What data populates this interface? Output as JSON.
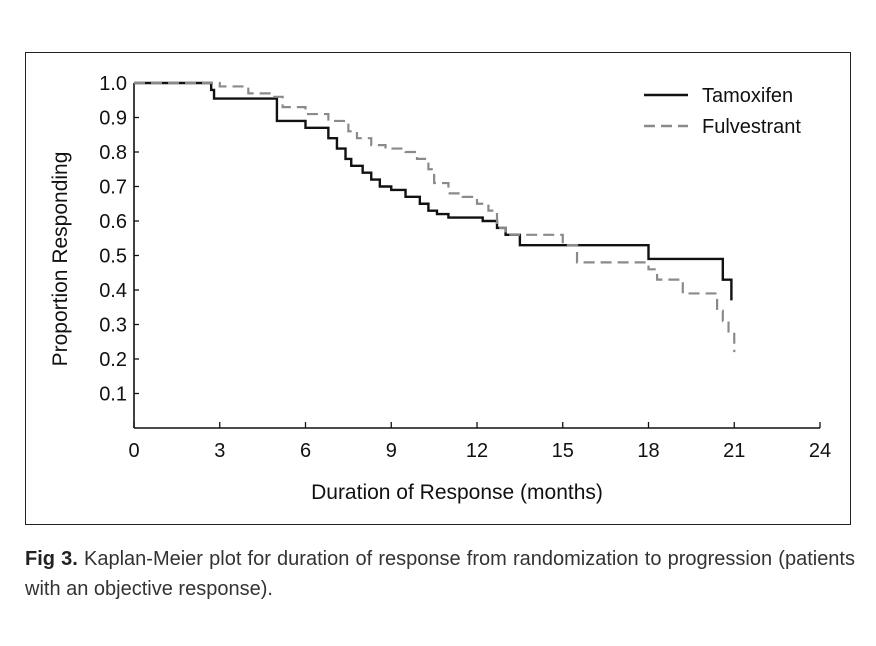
{
  "chart_data": {
    "type": "line",
    "title": "",
    "xlabel": "Duration of Response (months)",
    "ylabel": "Proportion Responding",
    "xlim": [
      0,
      24
    ],
    "ylim": [
      0,
      1.0
    ],
    "x_ticks": [
      0,
      3,
      6,
      9,
      12,
      15,
      18,
      21,
      24
    ],
    "x_tick_labels": [
      "0",
      "3",
      "6",
      "9",
      "12",
      "15",
      "18",
      "21",
      "24"
    ],
    "y_ticks": [
      0.1,
      0.2,
      0.3,
      0.4,
      0.5,
      0.6,
      0.7,
      0.8,
      0.9,
      1.0
    ],
    "y_tick_labels": [
      "0.1",
      "0.2",
      "0.3",
      "0.4",
      "0.5",
      "0.6",
      "0.7",
      "0.8",
      "0.9",
      "1.0"
    ],
    "grid": false,
    "legend_position": "top-right",
    "series": [
      {
        "name": "Tamoxifen",
        "style": "solid",
        "color": "#111111",
        "x": [
          0,
          2.7,
          2.8,
          4.8,
          5.0,
          5.6,
          6.0,
          6.8,
          7.1,
          7.4,
          7.6,
          8.0,
          8.3,
          8.6,
          9.0,
          9.5,
          10.0,
          10.3,
          10.6,
          11.0,
          11.6,
          12.2,
          12.7,
          13.0,
          13.5,
          16.0,
          17.9,
          18.0,
          20.4,
          20.6,
          20.9
        ],
        "y": [
          1.0,
          0.98,
          0.955,
          0.955,
          0.89,
          0.89,
          0.87,
          0.84,
          0.81,
          0.78,
          0.76,
          0.74,
          0.72,
          0.7,
          0.69,
          0.67,
          0.65,
          0.63,
          0.62,
          0.61,
          0.61,
          0.6,
          0.58,
          0.56,
          0.53,
          0.53,
          0.53,
          0.49,
          0.49,
          0.43,
          0.37
        ]
      },
      {
        "name": "Fulvestrant",
        "style": "dashed",
        "color": "#8a8a8a",
        "x": [
          0,
          2.3,
          3.0,
          4.0,
          4.8,
          5.2,
          6.0,
          6.8,
          7.5,
          7.8,
          8.3,
          8.8,
          9.5,
          9.9,
          10.3,
          10.5,
          11.0,
          11.5,
          12.0,
          12.4,
          12.7,
          13.0,
          15.0,
          15.5,
          17.6,
          18.0,
          18.3,
          19.2,
          20.0,
          20.4,
          20.6,
          20.8,
          21.0
        ],
        "y": [
          1.0,
          1.0,
          0.99,
          0.97,
          0.96,
          0.93,
          0.91,
          0.89,
          0.86,
          0.84,
          0.82,
          0.81,
          0.8,
          0.78,
          0.75,
          0.71,
          0.68,
          0.67,
          0.65,
          0.63,
          0.58,
          0.56,
          0.53,
          0.48,
          0.48,
          0.46,
          0.43,
          0.39,
          0.39,
          0.34,
          0.31,
          0.28,
          0.22
        ]
      }
    ]
  },
  "caption": {
    "figure_number": "Fig 3.",
    "text": " Kaplan-Meier plot for duration of response from randomization to progression (patients with an objective response)."
  }
}
